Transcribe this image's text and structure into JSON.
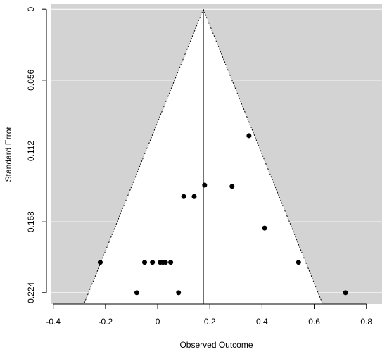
{
  "chart_data": {
    "type": "scatter",
    "subtype": "funnel",
    "xlabel": "Observed Outcome",
    "ylabel": "Standard Error",
    "xlim": [
      -0.41,
      0.86
    ],
    "ylim": [
      0.233,
      -0.004
    ],
    "x_ticks": [
      -0.4,
      -0.2,
      0,
      0.2,
      0.4,
      0.6,
      0.8
    ],
    "x_tick_labels": [
      "-0.4",
      "-0.2",
      "0",
      "0.2",
      "0.4",
      "0.6",
      "0.8"
    ],
    "y_ticks": [
      0,
      0.056,
      0.112,
      0.168,
      0.224
    ],
    "y_tick_labels": [
      "0",
      "0.056",
      "0.112",
      "0.168",
      "0.224"
    ],
    "y_axis_reversed": true,
    "grid": "horizontal",
    "center_estimate": 0.175,
    "funnel_bounds": {
      "left_at_max_se": -0.2825,
      "right_at_max_se": 0.6325,
      "max_se": 0.233
    },
    "points": [
      {
        "x": 0.35,
        "y": 0.1
      },
      {
        "x": 0.18,
        "y": 0.139
      },
      {
        "x": 0.285,
        "y": 0.14
      },
      {
        "x": 0.1,
        "y": 0.148
      },
      {
        "x": 0.14,
        "y": 0.148
      },
      {
        "x": 0.41,
        "y": 0.173
      },
      {
        "x": -0.22,
        "y": 0.2
      },
      {
        "x": -0.05,
        "y": 0.2
      },
      {
        "x": -0.02,
        "y": 0.2
      },
      {
        "x": 0.01,
        "y": 0.2
      },
      {
        "x": 0.02,
        "y": 0.2
      },
      {
        "x": 0.03,
        "y": 0.2
      },
      {
        "x": 0.05,
        "y": 0.2
      },
      {
        "x": 0.54,
        "y": 0.2
      },
      {
        "x": -0.08,
        "y": 0.224
      },
      {
        "x": 0.08,
        "y": 0.224
      },
      {
        "x": 0.72,
        "y": 0.224
      }
    ],
    "colors": {
      "background": "#d3d3d3",
      "funnel": "#ffffff",
      "points": "#000000",
      "grid": "#ffffff"
    }
  }
}
